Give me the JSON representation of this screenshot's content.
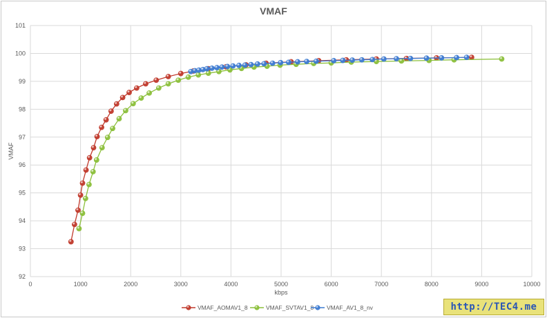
{
  "chart_data": {
    "type": "scatter",
    "title": "VMAF",
    "xlabel": "kbps",
    "ylabel": "VMAF",
    "xlim": [
      0,
      10000
    ],
    "ylim": [
      92,
      101
    ],
    "xticks": [
      0,
      1000,
      2000,
      3000,
      4000,
      5000,
      6000,
      7000,
      8000,
      9000,
      10000
    ],
    "yticks": [
      92,
      93,
      94,
      95,
      96,
      97,
      98,
      99,
      100,
      101
    ],
    "grid": true,
    "legend_position": "bottom",
    "series": [
      {
        "name": "VMAF_AOMAV1_8",
        "color": "#c0392b",
        "x": [
          810,
          880,
          950,
          1000,
          1040,
          1110,
          1180,
          1260,
          1330,
          1420,
          1510,
          1610,
          1720,
          1840,
          1970,
          2120,
          2300,
          2510,
          2750,
          3000,
          3250,
          3550,
          3900,
          4300,
          4700,
          5200,
          5750,
          6300,
          6900,
          7500,
          8100,
          8800
        ],
        "y": [
          93.25,
          93.87,
          94.38,
          94.92,
          95.35,
          95.82,
          96.26,
          96.62,
          97.02,
          97.35,
          97.62,
          97.93,
          98.19,
          98.42,
          98.6,
          98.76,
          98.91,
          99.04,
          99.17,
          99.28,
          99.37,
          99.45,
          99.52,
          99.59,
          99.65,
          99.7,
          99.74,
          99.77,
          99.8,
          99.82,
          99.84,
          99.86
        ]
      },
      {
        "name": "VMAF_SVTAV1_8",
        "color": "#8bbf3a",
        "x": [
          970,
          1040,
          1100,
          1170,
          1250,
          1320,
          1430,
          1540,
          1640,
          1770,
          1900,
          2050,
          2210,
          2370,
          2560,
          2750,
          2950,
          3150,
          3350,
          3550,
          3760,
          3980,
          4210,
          4460,
          4720,
          4980,
          5300,
          5650,
          6000,
          6400,
          6900,
          7400,
          7950,
          8450,
          9400
        ],
        "y": [
          93.72,
          94.27,
          94.8,
          95.3,
          95.76,
          96.18,
          96.62,
          96.99,
          97.31,
          97.66,
          97.95,
          98.2,
          98.4,
          98.58,
          98.76,
          98.91,
          99.04,
          99.15,
          99.23,
          99.29,
          99.35,
          99.41,
          99.46,
          99.51,
          99.54,
          99.58,
          99.61,
          99.64,
          99.66,
          99.69,
          99.71,
          99.73,
          99.75,
          99.77,
          99.8
        ]
      },
      {
        "name": "VMAF_AV1_8_nv",
        "color": "#3d7bd1",
        "x": [
          3200,
          3280,
          3360,
          3440,
          3520,
          3620,
          3720,
          3820,
          3930,
          4040,
          4160,
          4280,
          4400,
          4530,
          4660,
          4830,
          4990,
          5150,
          5330,
          5510,
          5700,
          6050,
          6230,
          6420,
          6610,
          6820,
          7050,
          7300,
          7580,
          7900,
          8200,
          8500,
          8700
        ],
        "y": [
          99.35,
          99.38,
          99.4,
          99.42,
          99.45,
          99.47,
          99.49,
          99.51,
          99.53,
          99.55,
          99.57,
          99.58,
          99.6,
          99.62,
          99.63,
          99.65,
          99.67,
          99.68,
          99.7,
          99.71,
          99.72,
          99.74,
          99.75,
          99.76,
          99.77,
          99.78,
          99.8,
          99.81,
          99.82,
          99.83,
          99.84,
          99.85,
          99.86
        ]
      }
    ]
  },
  "watermark": "http://TEC4.me"
}
